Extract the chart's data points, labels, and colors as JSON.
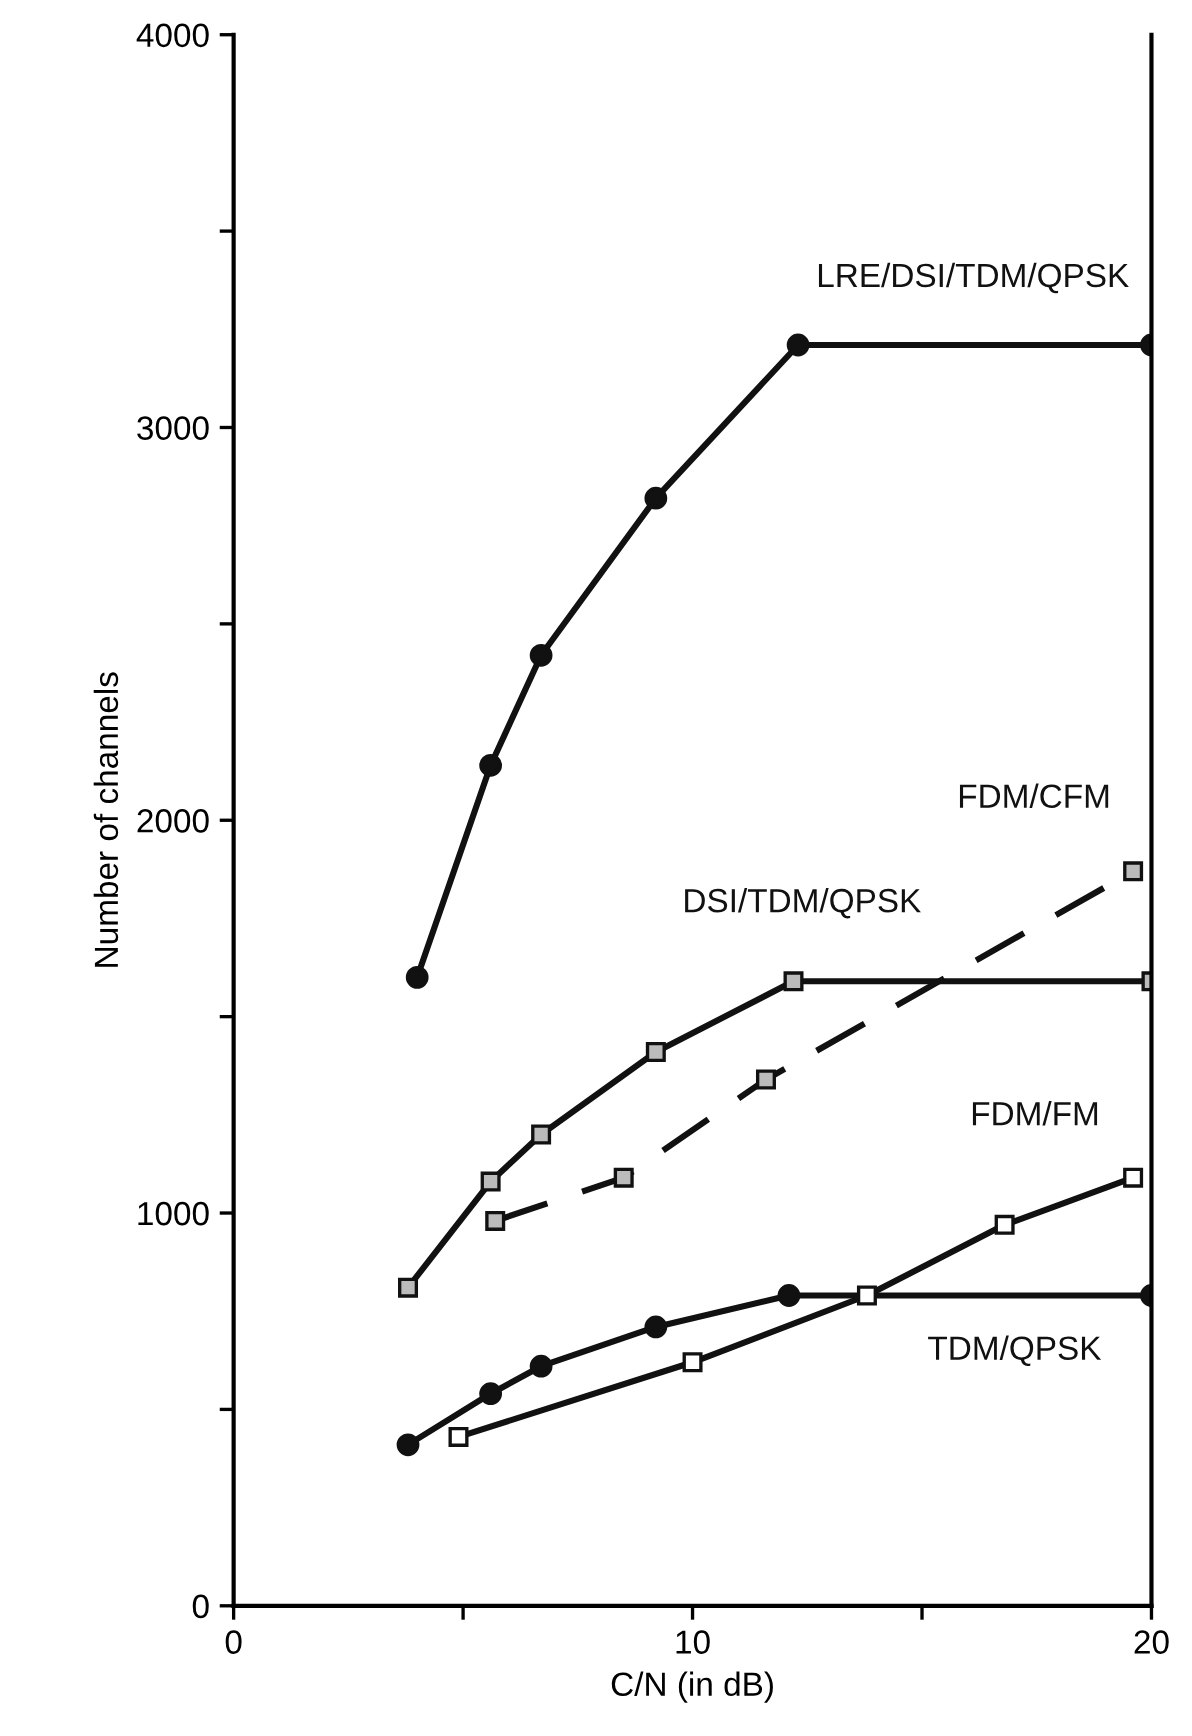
{
  "chart_data": {
    "type": "line",
    "xlabel": "C/N (in dB)",
    "ylabel": "Number of channels",
    "xlim": [
      0,
      20
    ],
    "ylim": [
      0,
      4000
    ],
    "xticks": [
      0,
      {
        "value": 5,
        "label": null
      },
      10,
      {
        "value": 15,
        "label": null
      },
      20
    ],
    "yticks": [
      0,
      {
        "value": 500,
        "label": null
      },
      1000,
      {
        "value": 1500,
        "label": null
      },
      2000,
      {
        "value": 2500,
        "label": null
      },
      3000,
      {
        "value": 3500,
        "label": null
      },
      4000
    ],
    "grid": false,
    "legend": false,
    "series": [
      {
        "name": "LRE/DSI/TDM/QPSK",
        "color": "#111111",
        "marker": "circle",
        "line_style": "solid",
        "x": [
          4,
          5.6,
          6.7,
          9.2,
          12.3,
          20
        ],
        "values": [
          1600,
          2140,
          2420,
          2820,
          3210,
          3210
        ]
      },
      {
        "name": "DSI/TDM/QPSK",
        "color": "#111111",
        "marker": "square",
        "line_style": "solid",
        "x": [
          3.8,
          5.6,
          6.7,
          9.2,
          12.2,
          20
        ],
        "values": [
          810,
          1080,
          1200,
          1410,
          1590,
          1590
        ]
      },
      {
        "name": "FDM/CFM",
        "color": "#111111",
        "marker": "square",
        "line_style": "dashed",
        "x": [
          5.7,
          8.5,
          11.6,
          19.6
        ],
        "values": [
          980,
          1090,
          1340,
          1870
        ]
      },
      {
        "name": "TDM/QPSK",
        "color": "#111111",
        "marker": "circle",
        "line_style": "solid",
        "x": [
          3.8,
          5.6,
          6.7,
          9.2,
          12.1,
          20
        ],
        "values": [
          410,
          540,
          610,
          710,
          790,
          790
        ]
      },
      {
        "name": "FDM/FM",
        "color": "#111111",
        "marker": "square",
        "line_style": "solid",
        "x": [
          4.9,
          10,
          13.8,
          16.8,
          19.6
        ],
        "values": [
          430,
          620,
          790,
          970,
          1090
        ]
      }
    ]
  }
}
